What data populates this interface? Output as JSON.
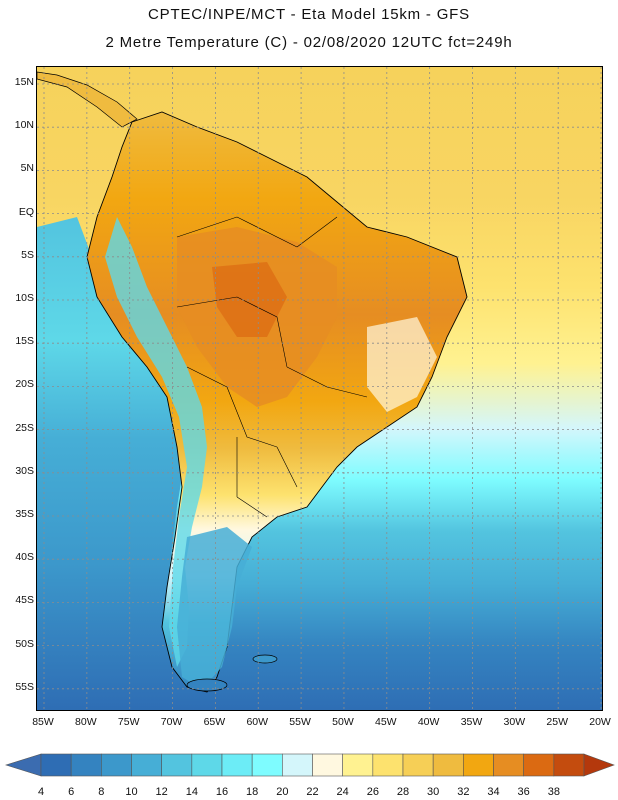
{
  "header": {
    "title": "CPTEC/INPE/MCT -  Eta Model 15km - GFS",
    "subtitle": "2 Metre Temperature (C) - 02/08/2020 12UTC fct=249h"
  },
  "map": {
    "variable": "2 Metre Temperature",
    "units": "C",
    "lat_ticks": [
      "15N",
      "10N",
      "5N",
      "EQ",
      "5S",
      "10S",
      "15S",
      "20S",
      "25S",
      "30S",
      "35S",
      "40S",
      "45S",
      "50S",
      "55S"
    ],
    "lon_ticks": [
      "85W",
      "80W",
      "75W",
      "70W",
      "65W",
      "60W",
      "55W",
      "50W",
      "45W",
      "40W",
      "35W",
      "30W",
      "25W",
      "20W"
    ]
  },
  "colorbar": {
    "labels": [
      "4",
      "6",
      "8",
      "10",
      "12",
      "14",
      "16",
      "18",
      "20",
      "22",
      "24",
      "26",
      "28",
      "30",
      "32",
      "34",
      "36",
      "38"
    ],
    "below_color": "#3b6cb0",
    "above_color": "#b4380c",
    "colors": [
      "#2e6db4",
      "#3483c0",
      "#3c98cb",
      "#46aed6",
      "#53c4df",
      "#5ed8e8",
      "#6cecf6",
      "#7efcff",
      "#d4f6fb",
      "#fff8e0",
      "#fff291",
      "#fde26e",
      "#f6cf56",
      "#efbb3f",
      "#f2a711",
      "#e68d22",
      "#db6a12",
      "#c44c0e"
    ]
  }
}
